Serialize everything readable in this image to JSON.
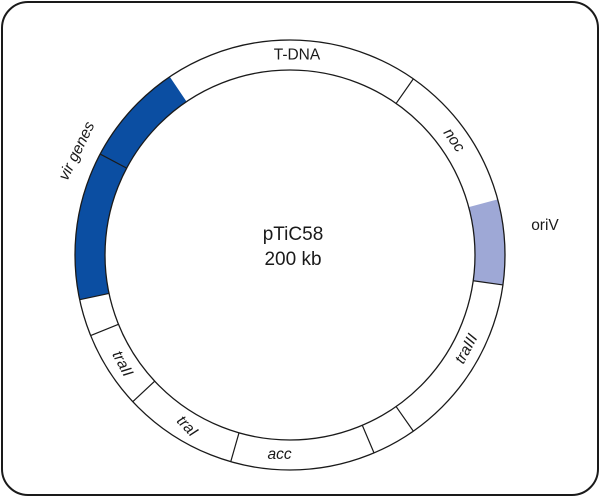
{
  "plasmid": {
    "name": "pTiC58",
    "size": "200 kb"
  },
  "colors": {
    "vir_fill": "#0b4ea2",
    "oriv_fill": "#9ea8d6",
    "ring_stroke": "#1a1a1a"
  },
  "regions": [
    {
      "id": "tdna",
      "label": "T-DNA",
      "italic": false,
      "filled": false
    },
    {
      "id": "noc",
      "label": "noc",
      "italic": true,
      "filled": false
    },
    {
      "id": "oriv",
      "label": "oriV",
      "italic": false,
      "filled": true,
      "color_key": "oriv_fill"
    },
    {
      "id": "traiii",
      "label": "traIII",
      "italic": true,
      "filled": false
    },
    {
      "id": "acc",
      "label": "acc",
      "italic": true,
      "filled": false
    },
    {
      "id": "trai",
      "label": "traI",
      "italic": true,
      "filled": false
    },
    {
      "id": "traii",
      "label": "traII",
      "italic": true,
      "filled": false
    },
    {
      "id": "vir",
      "label": "vir genes",
      "italic": true,
      "filled": true,
      "color_key": "vir_fill"
    }
  ]
}
